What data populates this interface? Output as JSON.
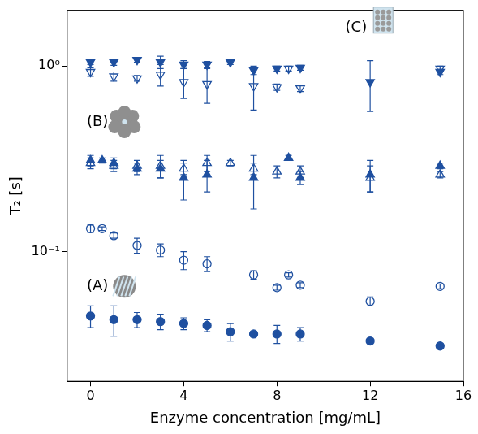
{
  "chart_data": {
    "type": "scatter",
    "x_label": "Enzyme concentration [mg/mL]",
    "y_label": "T₂ [s]",
    "log": "y",
    "grid": false,
    "xlim": [
      -1,
      16
    ],
    "xticks": [
      0,
      4,
      8,
      12,
      16
    ],
    "ylim": [
      0.02,
      2
    ],
    "yticks": [
      {
        "value": 0.1,
        "label": "10⁻¹"
      },
      {
        "value": 1,
        "label": "10⁰"
      }
    ],
    "annotations": [
      {
        "text": "(A)",
        "x": 0.3,
        "y": 0.065
      },
      {
        "text": "(B)",
        "x": 0.3,
        "y": 0.5
      },
      {
        "text": "(C)",
        "x": 11.4,
        "y": 1.6
      }
    ],
    "series": [
      {
        "color": "#1f50a0",
        "marker": "triangle-down",
        "x": [
          0,
          1,
          2,
          3,
          4,
          5,
          6,
          7,
          8,
          9,
          12,
          15
        ],
        "values": [
          1.05,
          1.05,
          1.08,
          1.05,
          1.02,
          1.02,
          1.05,
          0.95,
          0.97,
          0.98,
          0.82,
          0.93
        ],
        "errors": [
          0.03,
          0.04,
          0.03,
          0.08,
          0.05,
          0.04,
          0.03,
          0.05,
          0.03,
          0.03,
          0.25,
          0.03
        ]
      },
      {
        "color": "#1f50a0",
        "marker": "open-triangle-down",
        "x": [
          0,
          1,
          2,
          3,
          4,
          5,
          7,
          8,
          8.5,
          9,
          15
        ],
        "values": [
          0.93,
          0.88,
          0.86,
          0.9,
          0.82,
          0.8,
          0.78,
          0.77,
          0.97,
          0.76,
          0.97
        ],
        "errors": [
          0.05,
          0.05,
          0.03,
          0.12,
          0.15,
          0.17,
          0.2,
          0.03,
          0.03,
          0.03,
          0.03
        ]
      },
      {
        "color": "#1f50a0",
        "marker": "triangle",
        "x": [
          0,
          0.5,
          1,
          2,
          3,
          4,
          5,
          7,
          8.5,
          9,
          12,
          15
        ],
        "values": [
          0.31,
          0.31,
          0.3,
          0.28,
          0.28,
          0.25,
          0.26,
          0.25,
          0.32,
          0.25,
          0.26,
          0.29
        ],
        "errors": [
          0.02,
          0.01,
          0.02,
          0.02,
          0.03,
          0.06,
          0.05,
          0.08,
          0.01,
          0.02,
          0.05,
          0.01
        ]
      },
      {
        "color": "#1f50a0",
        "marker": "open-triangle",
        "x": [
          0,
          1,
          2,
          3,
          4,
          5,
          6,
          7,
          8,
          9,
          12,
          15
        ],
        "values": [
          0.3,
          0.29,
          0.29,
          0.29,
          0.28,
          0.3,
          0.3,
          0.28,
          0.27,
          0.27,
          0.25,
          0.26
        ],
        "errors": [
          0.02,
          0.02,
          0.02,
          0.04,
          0.02,
          0.03,
          0.01,
          0.02,
          0.02,
          0.02,
          0.04,
          0.01
        ]
      },
      {
        "color": "#1f50a0",
        "marker": "open-circle",
        "x": [
          0,
          0.5,
          1,
          2,
          3,
          4,
          5,
          7,
          8,
          8.5,
          9,
          12,
          15
        ],
        "values": [
          0.133,
          0.133,
          0.122,
          0.108,
          0.102,
          0.09,
          0.086,
          0.075,
          0.064,
          0.075,
          0.066,
          0.054,
          0.065
        ],
        "errors": [
          0.006,
          0.003,
          0.004,
          0.01,
          0.008,
          0.01,
          0.008,
          0.004,
          0.002,
          0.002,
          0.002,
          0.003,
          0.002
        ]
      },
      {
        "color": "#1f50a0",
        "marker": "circle",
        "x": [
          0,
          1,
          2,
          3,
          4,
          5,
          6,
          7,
          8,
          9,
          12,
          15
        ],
        "values": [
          0.045,
          0.043,
          0.043,
          0.042,
          0.041,
          0.04,
          0.037,
          0.036,
          0.036,
          0.036,
          0.033,
          0.031
        ],
        "errors": [
          0.006,
          0.008,
          0.004,
          0.004,
          0.003,
          0.003,
          0.004,
          0.001,
          0.004,
          0.003,
          0.001,
          0.001
        ]
      }
    ]
  }
}
